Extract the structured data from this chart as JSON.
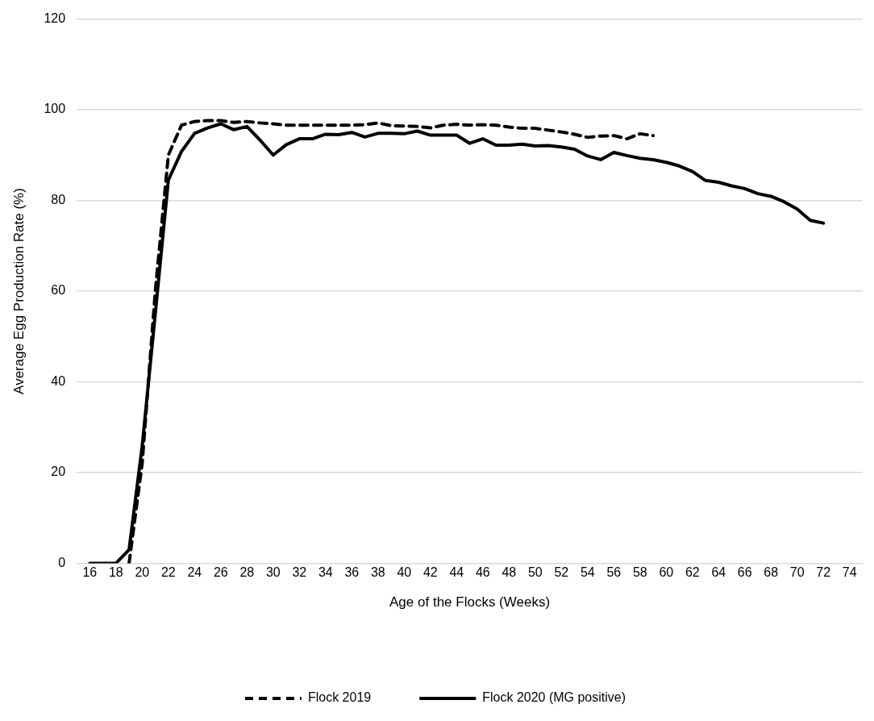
{
  "chart_data": {
    "type": "line",
    "xlabel": "Age of the Flocks (Weeks)",
    "ylabel": "Average Egg Production Rate (%)",
    "xlim": [
      15,
      75
    ],
    "xticks": [
      16,
      18,
      20,
      22,
      24,
      26,
      28,
      30,
      32,
      34,
      36,
      38,
      40,
      42,
      44,
      46,
      48,
      50,
      52,
      54,
      56,
      58,
      60,
      62,
      64,
      66,
      68,
      70,
      72,
      74
    ],
    "ylim": [
      0,
      120
    ],
    "yticks": [
      0,
      20,
      40,
      60,
      80,
      100,
      120
    ],
    "grid": "y",
    "legend": "bottom",
    "marker": "none",
    "series": [
      {
        "name": "Flock 2019",
        "color": "#000000",
        "line_style": "dashed",
        "x": [
          19,
          20,
          21,
          22,
          23,
          24,
          25,
          26,
          27,
          28,
          29,
          30,
          31,
          32,
          33,
          34,
          35,
          36,
          37,
          38,
          39,
          40,
          41,
          42,
          43,
          44,
          45,
          46,
          47,
          48,
          49,
          50,
          51,
          52,
          53,
          54,
          55,
          56,
          57,
          58,
          59
        ],
        "values": [
          0,
          22,
          60,
          90,
          96.6,
          97.4,
          97.6,
          97.6,
          97.2,
          97.4,
          97.1,
          96.9,
          96.6,
          96.6,
          96.6,
          96.6,
          96.6,
          96.6,
          96.7,
          97.1,
          96.5,
          96.4,
          96.3,
          96.0,
          96.6,
          96.8,
          96.6,
          96.7,
          96.6,
          96.2,
          95.9,
          95.9,
          95.5,
          95.1,
          94.6,
          93.9,
          94.2,
          94.3,
          93.6,
          94.7,
          94.3
        ]
      },
      {
        "name": "Flock 2020 (MG positive)",
        "color": "#000000",
        "line_style": "solid",
        "x": [
          16,
          17,
          18,
          19,
          20,
          21,
          22,
          23,
          24,
          25,
          26,
          27,
          28,
          29,
          30,
          31,
          32,
          33,
          34,
          35,
          36,
          37,
          38,
          39,
          40,
          41,
          42,
          43,
          44,
          45,
          46,
          47,
          48,
          49,
          50,
          51,
          52,
          53,
          54,
          55,
          56,
          57,
          58,
          59,
          60,
          61,
          62,
          63,
          64,
          65,
          66,
          67,
          68,
          69,
          70,
          71,
          72
        ],
        "values": [
          0,
          0,
          0,
          3,
          25.8,
          55,
          84.5,
          90.8,
          94.8,
          96,
          96.9,
          95.6,
          96.3,
          93.3,
          90,
          92.3,
          93.6,
          93.6,
          94.6,
          94.5,
          95,
          94,
          94.8,
          94.8,
          94.7,
          95.3,
          94.4,
          94.4,
          94.4,
          92.6,
          93.6,
          92.2,
          92.2,
          92.4,
          92.0,
          92.1,
          91.8,
          91.3,
          89.8,
          89.0,
          90.6,
          89.9,
          89.3,
          89.0,
          88.4,
          87.6,
          86.4,
          84.4,
          84.0,
          83.2,
          82.6,
          81.5,
          80.9,
          79.7,
          78.1,
          75.6,
          75.0
        ]
      }
    ]
  }
}
